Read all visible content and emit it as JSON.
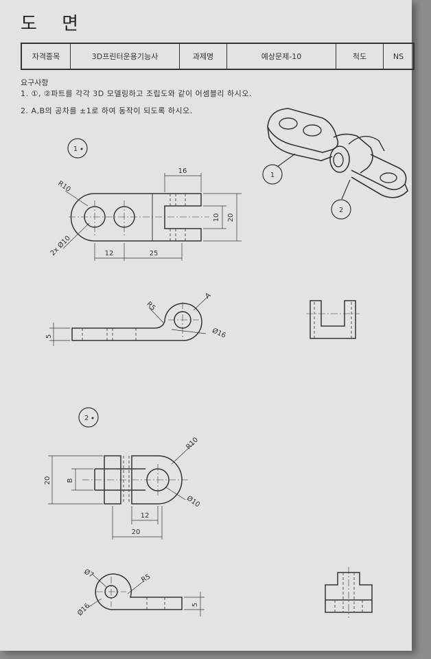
{
  "title": "도 면",
  "info_table": {
    "label_qualification": "자격종목",
    "qualification": "3D프린터운용기능사",
    "label_task": "과제명",
    "task": "예상문제-10",
    "label_scale": "척도",
    "scale": "NS"
  },
  "requirements": {
    "title": "요구사항",
    "line1": "1. ①, ②파트를 각각 3D 모델링하고 조립도와 같이 어셈블리 하시오.",
    "line2": "2. A,B의 공차를 ±1로 하여 동작이 되도록 하시오."
  },
  "callouts": {
    "part1": "1",
    "part2": "2"
  },
  "part_labels": {
    "part1": "1",
    "part2": "2"
  },
  "part1_top": {
    "dim_16": "16",
    "dim_10": "10",
    "dim_20": "20",
    "dim_12": "12",
    "dim_25": "25",
    "radius": "R10",
    "holes": "2x Ø10"
  },
  "part1_side": {
    "thickness": "5",
    "radius": "R5",
    "label_a": "A",
    "diameter": "Ø16"
  },
  "part2_top": {
    "dim_20_height": "20",
    "label_b": "B",
    "dim_12": "12",
    "dim_20_width": "20",
    "radius": "R10",
    "diameter": "Ø10"
  },
  "part2_side": {
    "diameter_7": "Ø7",
    "radius": "R5",
    "diameter_16": "Ø16",
    "thickness": "5"
  }
}
